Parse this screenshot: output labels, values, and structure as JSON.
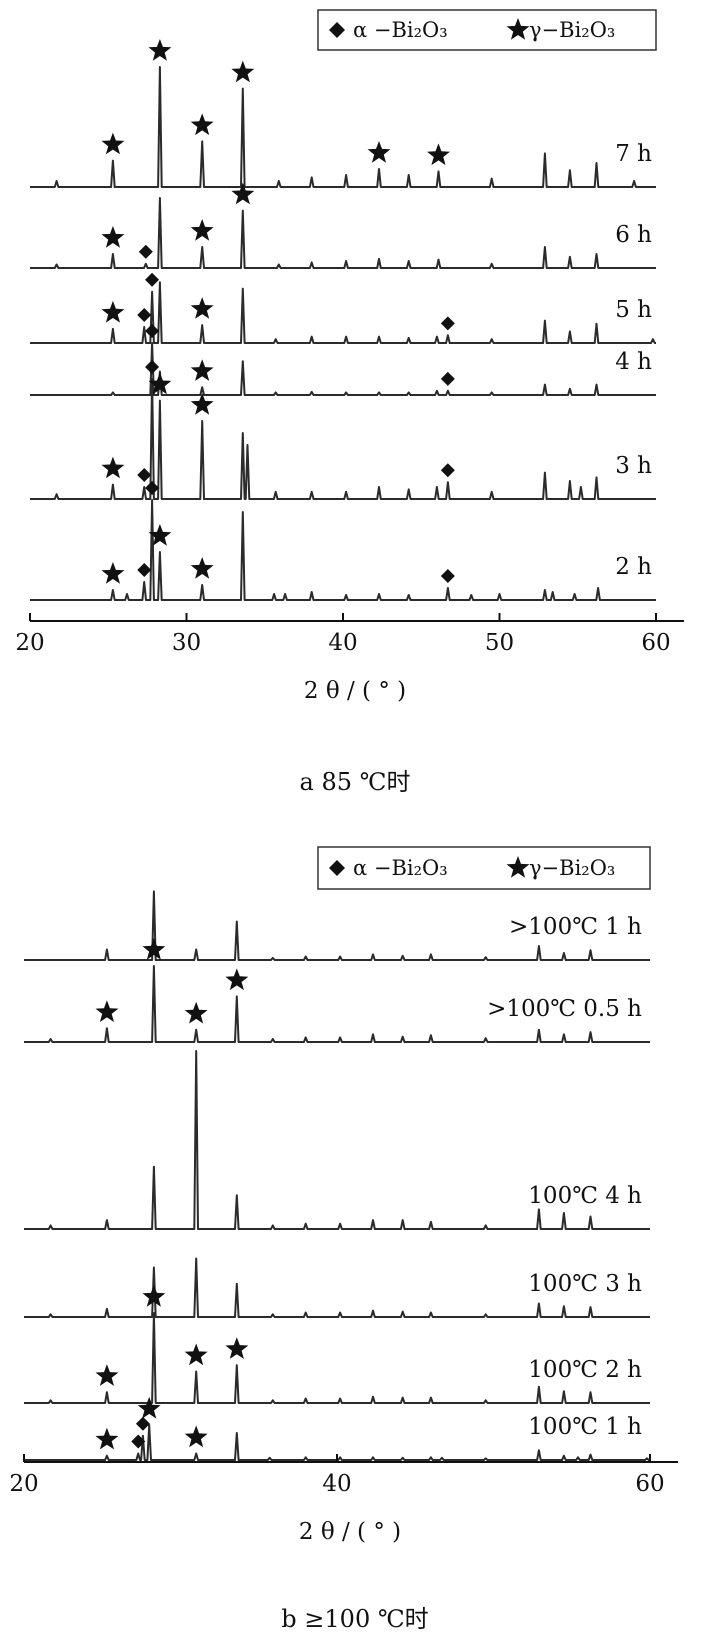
{
  "chart_data": [
    {
      "type": "line",
      "caption": "a 85 ℃时",
      "xlabel": "2 θ / ( ° )",
      "xlim": [
        20,
        60
      ],
      "xticks": [
        "20",
        "30",
        "40",
        "50",
        "60"
      ],
      "legend": [
        {
          "marker": "diamond",
          "label": "α −Bi₂O₃"
        },
        {
          "marker": "star",
          "label": "γ−Bi₂O₃"
        }
      ],
      "series": [
        {
          "name": "7 h",
          "peaks": [
            [
              21.7,
              0.05
            ],
            [
              25.3,
              0.22
            ],
            [
              28.3,
              1.0
            ],
            [
              31.0,
              0.38
            ],
            [
              33.6,
              0.82
            ],
            [
              35.9,
              0.05
            ],
            [
              38.0,
              0.08
            ],
            [
              40.2,
              0.1
            ],
            [
              42.3,
              0.15
            ],
            [
              44.2,
              0.1
            ],
            [
              46.1,
              0.13
            ],
            [
              49.5,
              0.07
            ],
            [
              52.9,
              0.28
            ],
            [
              54.5,
              0.14
            ],
            [
              56.2,
              0.2
            ],
            [
              58.6,
              0.05
            ]
          ],
          "markers": [
            {
              "x": 25.3,
              "m": "star"
            },
            {
              "x": 28.3,
              "m": "star"
            },
            {
              "x": 31.0,
              "m": "star"
            },
            {
              "x": 33.6,
              "m": "star"
            },
            {
              "x": 42.3,
              "m": "star"
            },
            {
              "x": 46.1,
              "m": "star"
            }
          ]
        },
        {
          "name": "6 h",
          "peaks": [
            [
              21.7,
              0.05
            ],
            [
              25.3,
              0.2
            ],
            [
              27.4,
              0.06
            ],
            [
              28.3,
              1.0
            ],
            [
              31.0,
              0.3
            ],
            [
              33.6,
              0.82
            ],
            [
              35.9,
              0.05
            ],
            [
              38.0,
              0.08
            ],
            [
              40.2,
              0.1
            ],
            [
              42.3,
              0.13
            ],
            [
              44.2,
              0.1
            ],
            [
              46.1,
              0.12
            ],
            [
              49.5,
              0.06
            ],
            [
              52.9,
              0.3
            ],
            [
              54.5,
              0.16
            ],
            [
              56.2,
              0.2
            ]
          ],
          "markers": [
            {
              "x": 25.3,
              "m": "star"
            },
            {
              "x": 27.4,
              "m": "diamond"
            },
            {
              "x": 31.0,
              "m": "star"
            },
            {
              "x": 33.6,
              "m": "star"
            }
          ]
        },
        {
          "name": "5 h",
          "peaks": [
            [
              25.3,
              0.22
            ],
            [
              27.3,
              0.25
            ],
            [
              27.8,
              0.8
            ],
            [
              28.3,
              0.95
            ],
            [
              31.0,
              0.28
            ],
            [
              33.6,
              0.85
            ],
            [
              35.7,
              0.06
            ],
            [
              38.0,
              0.1
            ],
            [
              40.2,
              0.1
            ],
            [
              42.3,
              0.1
            ],
            [
              44.2,
              0.08
            ],
            [
              46.0,
              0.1
            ],
            [
              46.7,
              0.12
            ],
            [
              49.5,
              0.06
            ],
            [
              52.9,
              0.35
            ],
            [
              54.5,
              0.18
            ],
            [
              56.2,
              0.3
            ],
            [
              59.8,
              0.06
            ]
          ],
          "markers": [
            {
              "x": 25.3,
              "m": "star"
            },
            {
              "x": 27.3,
              "m": "diamond"
            },
            {
              "x": 27.8,
              "m": "diamond"
            },
            {
              "x": 31.0,
              "m": "star"
            },
            {
              "x": 46.7,
              "m": "diamond"
            }
          ]
        },
        {
          "name": "4 h",
          "peaks": [
            [
              25.3,
              0.05
            ],
            [
              27.8,
              1.0
            ],
            [
              28.3,
              0.45
            ],
            [
              31.0,
              0.15
            ],
            [
              33.6,
              0.65
            ],
            [
              35.7,
              0.05
            ],
            [
              38.0,
              0.06
            ],
            [
              40.2,
              0.05
            ],
            [
              42.3,
              0.05
            ],
            [
              44.2,
              0.05
            ],
            [
              46.0,
              0.08
            ],
            [
              46.7,
              0.08
            ],
            [
              49.5,
              0.05
            ],
            [
              52.9,
              0.2
            ],
            [
              54.5,
              0.12
            ],
            [
              56.2,
              0.2
            ]
          ],
          "markers": [
            {
              "x": 27.8,
              "m": "diamond"
            },
            {
              "x": 31.0,
              "m": "star"
            },
            {
              "x": 46.7,
              "m": "diamond"
            }
          ]
        },
        {
          "name": "3 h",
          "peaks": [
            [
              21.7,
              0.04
            ],
            [
              25.3,
              0.12
            ],
            [
              27.3,
              0.1
            ],
            [
              27.8,
              1.0
            ],
            [
              28.3,
              0.82
            ],
            [
              31.0,
              0.65
            ],
            [
              33.6,
              0.55
            ],
            [
              33.9,
              0.45
            ],
            [
              35.7,
              0.06
            ],
            [
              38.0,
              0.06
            ],
            [
              40.2,
              0.06
            ],
            [
              42.3,
              0.1
            ],
            [
              44.2,
              0.08
            ],
            [
              46.0,
              0.1
            ],
            [
              46.7,
              0.14
            ],
            [
              49.5,
              0.06
            ],
            [
              52.9,
              0.22
            ],
            [
              54.5,
              0.15
            ],
            [
              55.2,
              0.1
            ],
            [
              56.2,
              0.18
            ]
          ],
          "markers": [
            {
              "x": 25.3,
              "m": "star"
            },
            {
              "x": 27.3,
              "m": "diamond"
            },
            {
              "x": 27.8,
              "m": "diamond"
            },
            {
              "x": 28.3,
              "m": "star"
            },
            {
              "x": 31.0,
              "m": "star"
            },
            {
              "x": 46.7,
              "m": "diamond"
            }
          ]
        },
        {
          "name": "2 h",
          "peaks": [
            [
              25.3,
              0.1
            ],
            [
              26.2,
              0.06
            ],
            [
              27.3,
              0.18
            ],
            [
              27.8,
              1.0
            ],
            [
              28.3,
              0.48
            ],
            [
              31.0,
              0.15
            ],
            [
              33.6,
              0.88
            ],
            [
              35.6,
              0.06
            ],
            [
              36.3,
              0.06
            ],
            [
              38.0,
              0.08
            ],
            [
              40.2,
              0.05
            ],
            [
              42.3,
              0.06
            ],
            [
              44.2,
              0.05
            ],
            [
              46.7,
              0.12
            ],
            [
              48.2,
              0.05
            ],
            [
              50.0,
              0.06
            ],
            [
              52.9,
              0.1
            ],
            [
              53.4,
              0.08
            ],
            [
              54.8,
              0.06
            ],
            [
              56.3,
              0.12
            ]
          ],
          "markers": [
            {
              "x": 25.3,
              "m": "star"
            },
            {
              "x": 27.3,
              "m": "diamond"
            },
            {
              "x": 27.8,
              "m": "diamond"
            },
            {
              "x": 28.3,
              "m": "star"
            },
            {
              "x": 31.0,
              "m": "star"
            },
            {
              "x": 46.7,
              "m": "diamond"
            }
          ]
        }
      ]
    },
    {
      "type": "line",
      "caption": "b ≥100 ℃时",
      "xlabel": "2 θ / ( ° )",
      "xlim": [
        20,
        60
      ],
      "xticks": [
        "20",
        "40",
        "60"
      ],
      "legend": [
        {
          "marker": "diamond",
          "label": "α −Bi₂O₃"
        },
        {
          "marker": "star",
          "label": "γ−Bi₂O₃"
        }
      ],
      "series": [
        {
          "name": ">100℃ 1 h",
          "peaks": [
            [
              25.3,
              0.15
            ],
            [
              28.3,
              0.98
            ],
            [
              31.0,
              0.15
            ],
            [
              33.6,
              0.55
            ],
            [
              35.9,
              0.03
            ],
            [
              38.0,
              0.05
            ],
            [
              40.2,
              0.05
            ],
            [
              42.3,
              0.08
            ],
            [
              44.2,
              0.06
            ],
            [
              46.0,
              0.08
            ],
            [
              49.5,
              0.04
            ],
            [
              52.9,
              0.2
            ],
            [
              54.5,
              0.1
            ],
            [
              56.2,
              0.14
            ]
          ],
          "markers": []
        },
        {
          "name": ">100℃ 0.5 h",
          "peaks": [
            [
              21.7,
              0.04
            ],
            [
              25.3,
              0.18
            ],
            [
              28.3,
              1.0
            ],
            [
              31.0,
              0.16
            ],
            [
              33.6,
              0.6
            ],
            [
              35.9,
              0.04
            ],
            [
              38.0,
              0.06
            ],
            [
              40.2,
              0.06
            ],
            [
              42.3,
              0.1
            ],
            [
              44.2,
              0.07
            ],
            [
              46.0,
              0.09
            ],
            [
              49.5,
              0.05
            ],
            [
              52.9,
              0.16
            ],
            [
              54.5,
              0.1
            ],
            [
              56.2,
              0.13
            ]
          ],
          "markers": [
            {
              "x": 25.3,
              "m": "star"
            },
            {
              "x": 28.3,
              "m": "star"
            },
            {
              "x": 31.0,
              "m": "star"
            },
            {
              "x": 33.6,
              "m": "star"
            }
          ]
        },
        {
          "name": "100℃ 4 h",
          "peaks": [
            [
              21.7,
              0.02
            ],
            [
              25.3,
              0.05
            ],
            [
              28.3,
              0.35
            ],
            [
              31.0,
              1.0
            ],
            [
              33.6,
              0.19
            ],
            [
              35.9,
              0.02
            ],
            [
              38.0,
              0.03
            ],
            [
              40.2,
              0.03
            ],
            [
              42.3,
              0.05
            ],
            [
              44.2,
              0.05
            ],
            [
              46.0,
              0.04
            ],
            [
              49.5,
              0.02
            ],
            [
              52.9,
              0.11
            ],
            [
              54.5,
              0.09
            ],
            [
              56.2,
              0.07
            ]
          ],
          "markers": []
        },
        {
          "name": "100℃ 3 h",
          "peaks": [
            [
              21.7,
              0.03
            ],
            [
              25.3,
              0.09
            ],
            [
              28.3,
              0.55
            ],
            [
              31.0,
              0.65
            ],
            [
              33.6,
              0.37
            ],
            [
              35.9,
              0.03
            ],
            [
              38.0,
              0.05
            ],
            [
              40.2,
              0.05
            ],
            [
              42.3,
              0.07
            ],
            [
              44.2,
              0.06
            ],
            [
              46.0,
              0.05
            ],
            [
              49.5,
              0.03
            ],
            [
              52.9,
              0.15
            ],
            [
              54.5,
              0.12
            ],
            [
              56.2,
              0.11
            ]
          ],
          "markers": []
        },
        {
          "name": "100℃ 2 h",
          "peaks": [
            [
              21.7,
              0.03
            ],
            [
              25.3,
              0.12
            ],
            [
              28.3,
              1.0
            ],
            [
              31.0,
              0.35
            ],
            [
              33.6,
              0.42
            ],
            [
              35.9,
              0.03
            ],
            [
              38.0,
              0.05
            ],
            [
              40.2,
              0.05
            ],
            [
              42.3,
              0.07
            ],
            [
              44.2,
              0.06
            ],
            [
              46.0,
              0.06
            ],
            [
              49.5,
              0.03
            ],
            [
              52.9,
              0.18
            ],
            [
              54.5,
              0.13
            ],
            [
              56.2,
              0.12
            ]
          ],
          "markers": [
            {
              "x": 25.3,
              "m": "star"
            },
            {
              "x": 28.3,
              "m": "star"
            },
            {
              "x": 31.0,
              "m": "star"
            },
            {
              "x": 33.6,
              "m": "star"
            }
          ]
        },
        {
          "name": "100℃ 1 h",
          "peaks": [
            [
              25.3,
              0.08
            ],
            [
              27.3,
              0.12
            ],
            [
              27.6,
              0.45
            ],
            [
              28.0,
              0.65
            ],
            [
              31.0,
              0.12
            ],
            [
              33.6,
              0.5
            ],
            [
              35.7,
              0.04
            ],
            [
              38.0,
              0.05
            ],
            [
              40.2,
              0.05
            ],
            [
              42.3,
              0.05
            ],
            [
              44.2,
              0.04
            ],
            [
              46.0,
              0.05
            ],
            [
              46.7,
              0.04
            ],
            [
              49.5,
              0.03
            ],
            [
              52.9,
              0.18
            ],
            [
              54.5,
              0.08
            ],
            [
              55.4,
              0.05
            ],
            [
              56.2,
              0.1
            ],
            [
              59.8,
              0.03
            ]
          ],
          "markers": [
            {
              "x": 25.3,
              "m": "star"
            },
            {
              "x": 27.3,
              "m": "diamond"
            },
            {
              "x": 27.6,
              "m": "diamond"
            },
            {
              "x": 28.0,
              "m": "star"
            },
            {
              "x": 31.0,
              "m": "star"
            }
          ]
        }
      ]
    }
  ]
}
